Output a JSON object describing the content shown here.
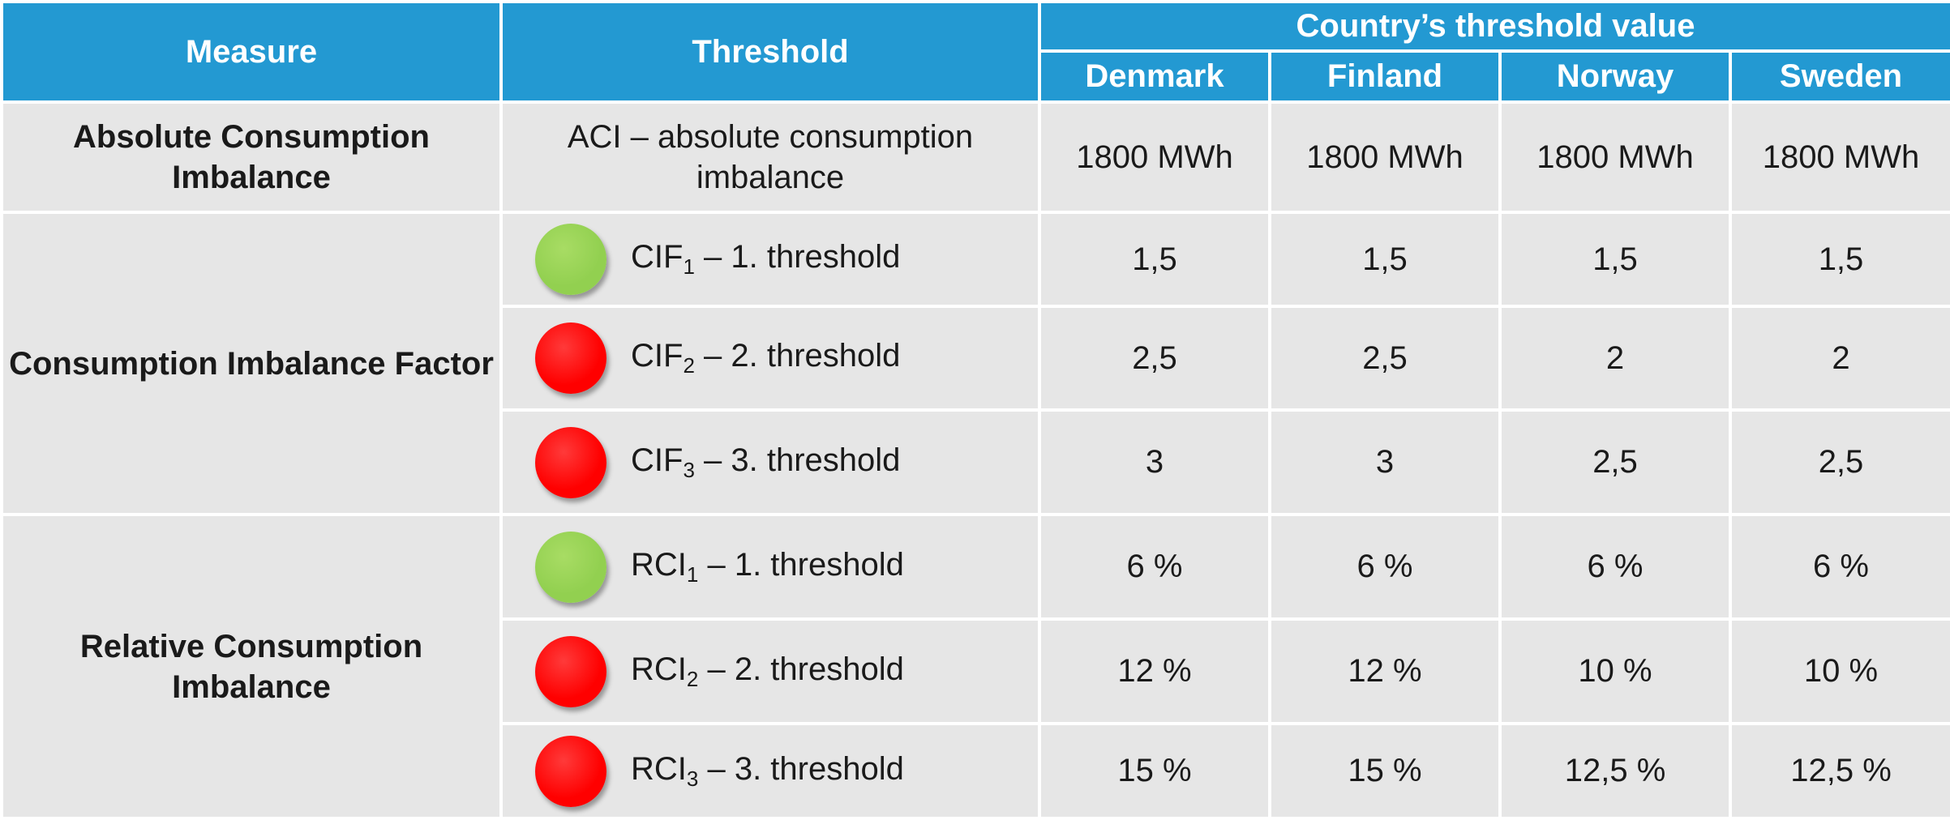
{
  "header": {
    "measure": "Measure",
    "threshold": "Threshold",
    "country_group": "Country’s threshold value",
    "countries": [
      "Denmark",
      "Finland",
      "Norway",
      "Sweden"
    ]
  },
  "aci": {
    "measure": "Absolute Consumption Imbalance",
    "threshold": "ACI – absolute consumption imbalance",
    "values": [
      "1800 MWh",
      "1800 MWh",
      "1800 MWh",
      "1800 MWh"
    ]
  },
  "cif": {
    "measure": "Consumption Imbalance Factor",
    "rows": [
      {
        "prefix": "CIF",
        "sub": "1",
        "suffix": " – 1. threshold",
        "status_color": "#92d050",
        "values": [
          "1,5",
          "1,5",
          "1,5",
          "1,5"
        ]
      },
      {
        "prefix": "CIF",
        "sub": "2",
        "suffix": " – 2. threshold",
        "status_color": "#ff0000",
        "values": [
          "2,5",
          "2,5",
          "2",
          "2"
        ]
      },
      {
        "prefix": "CIF",
        "sub": "3",
        "suffix": " – 3. threshold",
        "status_color": "#ff0000",
        "values": [
          "3",
          "3",
          "2,5",
          "2,5"
        ]
      }
    ]
  },
  "rci": {
    "measure": "Relative Consumption Imbalance",
    "rows": [
      {
        "prefix": "RCI",
        "sub": "1",
        "suffix": " – 1. threshold",
        "status_color": "#92d050",
        "values": [
          "6 %",
          "6 %",
          "6 %",
          "6 %"
        ]
      },
      {
        "prefix": "RCI",
        "sub": "2",
        "suffix": " – 2. threshold",
        "status_color": "#ff0000",
        "values": [
          "12 %",
          "12 %",
          "10 %",
          "10 %"
        ]
      },
      {
        "prefix": "RCI",
        "sub": "3",
        "suffix": " – 3. threshold",
        "status_color": "#ff0000",
        "values": [
          "15 %",
          "15 %",
          "12,5 %",
          "12,5 %"
        ]
      }
    ]
  }
}
